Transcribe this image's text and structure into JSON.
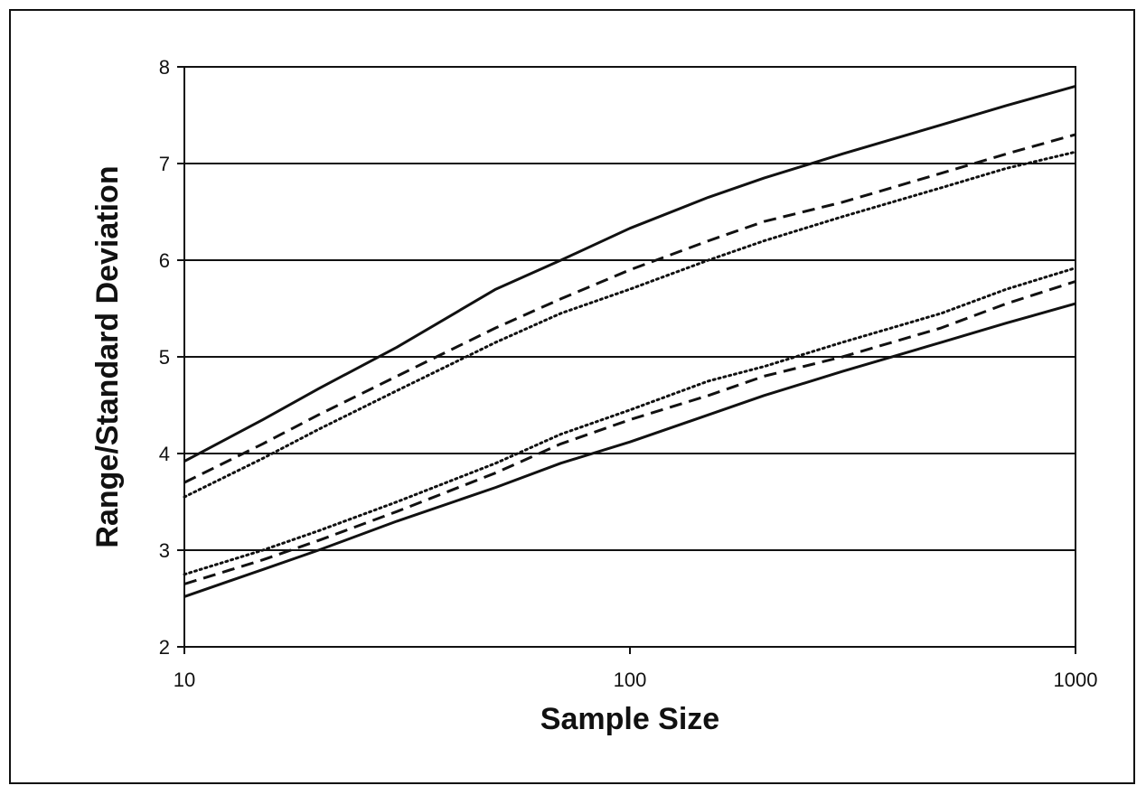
{
  "chart_data": {
    "type": "line",
    "title": "",
    "xlabel": "Sample Size",
    "ylabel": "Range/Standard Deviation",
    "x_scale": "log",
    "xlim": [
      10,
      1000
    ],
    "ylim": [
      2,
      8
    ],
    "x_ticks": [
      "10",
      "100",
      "1000"
    ],
    "y_ticks": [
      "2",
      "3",
      "4",
      "5",
      "6",
      "7",
      "8"
    ],
    "grid": "horizontal",
    "legend": "none",
    "series": [
      {
        "style": "solid",
        "x": [
          10,
          15,
          20,
          30,
          50,
          70,
          100,
          150,
          200,
          300,
          500,
          700,
          1000
        ],
        "y": [
          3.92,
          4.35,
          4.67,
          5.1,
          5.7,
          6.0,
          6.33,
          6.65,
          6.85,
          7.1,
          7.4,
          7.6,
          7.8
        ]
      },
      {
        "style": "dashed",
        "x": [
          10,
          15,
          20,
          30,
          50,
          70,
          100,
          150,
          200,
          300,
          500,
          700,
          1000
        ],
        "y": [
          3.7,
          4.1,
          4.4,
          4.8,
          5.3,
          5.6,
          5.9,
          6.2,
          6.4,
          6.6,
          6.9,
          7.1,
          7.3
        ]
      },
      {
        "style": "dotted",
        "x": [
          10,
          15,
          20,
          30,
          50,
          70,
          100,
          150,
          200,
          300,
          500,
          700,
          1000
        ],
        "y": [
          3.55,
          3.95,
          4.25,
          4.65,
          5.15,
          5.45,
          5.7,
          6.0,
          6.2,
          6.45,
          6.75,
          6.95,
          7.12
        ]
      },
      {
        "style": "dotted",
        "x": [
          10,
          15,
          20,
          30,
          50,
          70,
          100,
          150,
          200,
          300,
          500,
          700,
          1000
        ],
        "y": [
          2.75,
          3.0,
          3.2,
          3.5,
          3.9,
          4.2,
          4.45,
          4.75,
          4.9,
          5.15,
          5.45,
          5.7,
          5.92
        ]
      },
      {
        "style": "dashed",
        "x": [
          10,
          15,
          20,
          30,
          50,
          70,
          100,
          150,
          200,
          300,
          500,
          700,
          1000
        ],
        "y": [
          2.65,
          2.9,
          3.1,
          3.4,
          3.8,
          4.1,
          4.35,
          4.6,
          4.8,
          5.0,
          5.3,
          5.55,
          5.78
        ]
      },
      {
        "style": "solid",
        "x": [
          10,
          15,
          20,
          30,
          50,
          70,
          100,
          150,
          200,
          300,
          500,
          700,
          1000
        ],
        "y": [
          2.52,
          2.8,
          3.0,
          3.3,
          3.65,
          3.9,
          4.12,
          4.4,
          4.6,
          4.85,
          5.15,
          5.35,
          5.55
        ]
      }
    ],
    "colors": {
      "line": "#111111",
      "grid": "#111111"
    }
  }
}
